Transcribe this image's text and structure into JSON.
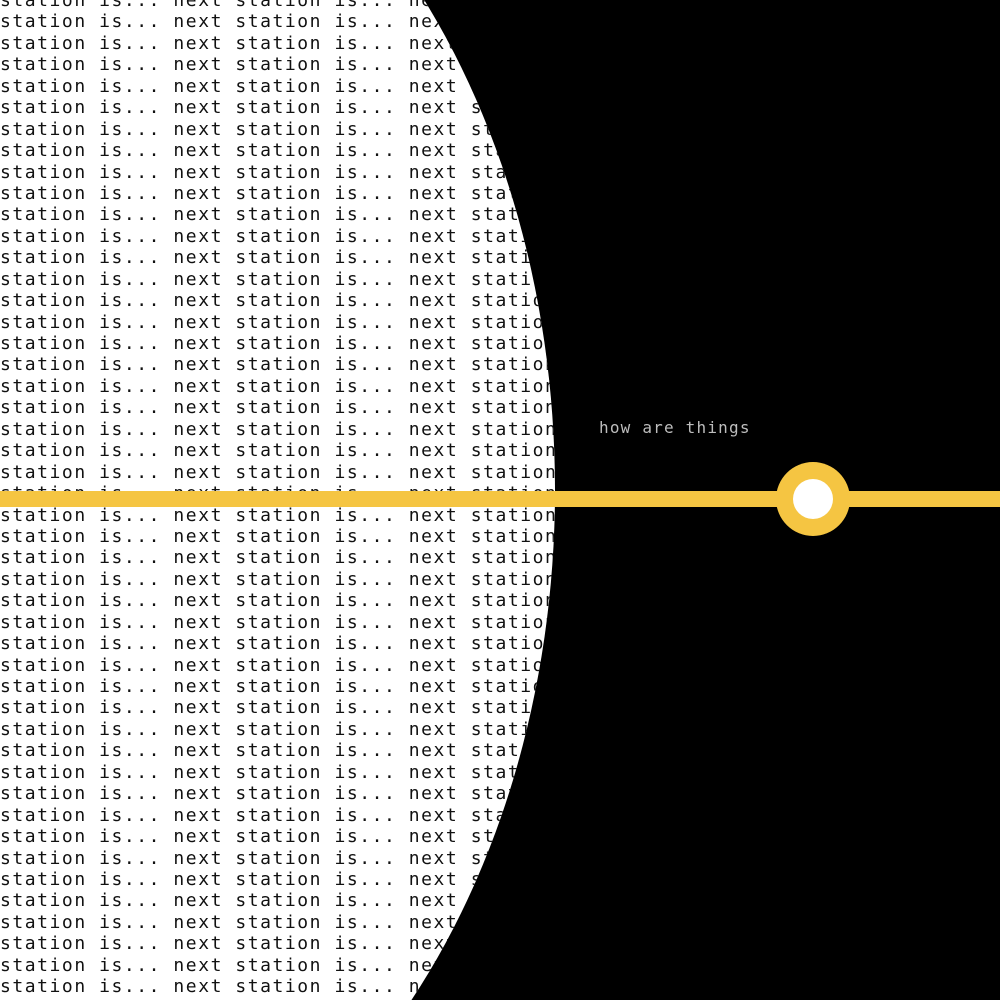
{
  "background_color": "#000000",
  "text_field_color": "#ffffff",
  "route_line_color": "#f5c542",
  "station_inner_color": "#ffffff",
  "repeated_text": "station is... next ",
  "caption": "how are things"
}
